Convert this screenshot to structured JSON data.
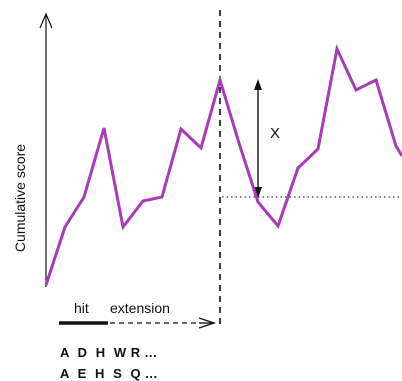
{
  "diagram": {
    "ylabel": "Cumulative score",
    "hit_label": "hit",
    "extension_label": "extension",
    "drop_label": "X",
    "sequence_1": "A  D  H  W R ...",
    "sequence_2": "A  E  H  S  Q ...",
    "colors": {
      "score_line": "#a63cb6",
      "axis": "#111111"
    }
  }
}
